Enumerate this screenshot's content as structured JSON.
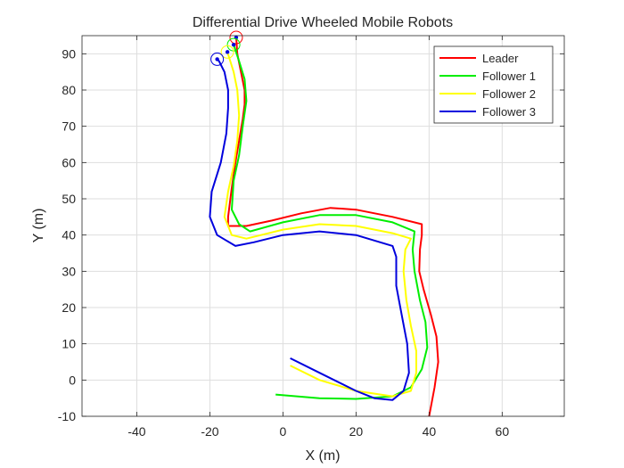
{
  "chart_data": {
    "type": "line",
    "title": "Differential Drive Wheeled Mobile Robots",
    "xlabel": "X (m)",
    "ylabel": "Y (m)",
    "xlim": [
      -55,
      77
    ],
    "ylim": [
      -10,
      95
    ],
    "xticks": [
      -40,
      -20,
      0,
      20,
      40,
      60
    ],
    "yticks": [
      -10,
      0,
      10,
      20,
      30,
      40,
      50,
      60,
      70,
      80,
      90
    ],
    "grid": true,
    "legend": {
      "position": "top-right"
    },
    "series": [
      {
        "name": "Leader",
        "color": "#ff0000",
        "x": [
          40,
          41.5,
          42.5,
          42,
          40.5,
          38.5,
          37.3,
          37.5,
          38,
          38,
          30,
          20,
          13,
          5,
          -3,
          -10,
          -15,
          -15,
          -14,
          -13,
          -12,
          -11,
          -10.5,
          -10.5,
          -11.5,
          -12.5,
          -12.8
        ],
        "y": [
          -10,
          -2,
          5,
          12,
          18,
          25,
          30,
          36,
          40,
          43,
          45,
          47,
          47.5,
          46,
          44,
          42.5,
          42.5,
          45,
          53,
          60,
          66,
          72,
          76,
          80,
          85,
          90,
          94.5
        ],
        "marker": {
          "x": -12.8,
          "y": 94.5
        }
      },
      {
        "name": "Follower 1",
        "color": "#00ee00",
        "x": [
          -2,
          10,
          20,
          30,
          35,
          38,
          39.5,
          39,
          37.5,
          36,
          35.5,
          36,
          30,
          20,
          10,
          0,
          -9,
          -12,
          -14,
          -13.5,
          -12,
          -11,
          -10,
          -10.5,
          -12,
          -13.5
        ],
        "y": [
          -4,
          -5,
          -5.2,
          -4.5,
          -2,
          3,
          9,
          16,
          22,
          30,
          36,
          41,
          43.5,
          45.5,
          45.5,
          43.5,
          41,
          43,
          47,
          55,
          62,
          70,
          77,
          83,
          88,
          92.5
        ],
        "marker": {
          "x": -13.5,
          "y": 92.5
        }
      },
      {
        "name": "Follower 2",
        "color": "#ffff00",
        "x": [
          2,
          10,
          20,
          30,
          35,
          36.5,
          36.5,
          35,
          33.8,
          33,
          33.5,
          35,
          30,
          20,
          10,
          0,
          -10,
          -14,
          -16,
          -15,
          -13.5,
          -12.5,
          -12,
          -12.5,
          -13.5,
          -15.2
        ],
        "y": [
          4,
          0,
          -3,
          -4.5,
          -3,
          2,
          8,
          15,
          22,
          30,
          36,
          39,
          40.5,
          42.5,
          43,
          41.5,
          39,
          40,
          45,
          52,
          59,
          66,
          73,
          80,
          85,
          90.5
        ],
        "marker": {
          "x": -15.2,
          "y": 90.5
        }
      },
      {
        "name": "Follower 3",
        "color": "#0000dd",
        "x": [
          2,
          10,
          20,
          25,
          30,
          33,
          34.5,
          34,
          32.5,
          31,
          31,
          30,
          20,
          10,
          0,
          -8,
          -13,
          -18,
          -20,
          -19.5,
          -17,
          -15.5,
          -15,
          -15,
          -16,
          -17.5,
          -18
        ],
        "y": [
          6,
          2,
          -3,
          -5,
          -5.5,
          -3,
          2,
          10,
          18,
          26,
          34,
          37,
          40,
          41,
          40,
          38,
          37,
          40,
          45,
          52,
          60,
          68,
          75,
          80,
          85,
          88,
          88.5
        ],
        "marker": {
          "x": -18,
          "y": 88.5
        }
      }
    ]
  }
}
